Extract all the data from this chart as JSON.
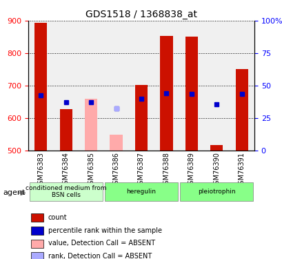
{
  "title": "GDS1518 / 1368838_at",
  "samples": [
    "GSM76383",
    "GSM76384",
    "GSM76385",
    "GSM76386",
    "GSM76387",
    "GSM76388",
    "GSM76389",
    "GSM76390",
    "GSM76391"
  ],
  "bar_values": [
    893,
    627,
    null,
    null,
    701,
    854,
    851,
    516,
    750
  ],
  "bar_absent_values": [
    null,
    null,
    660,
    547,
    null,
    null,
    null,
    null,
    null
  ],
  "blue_dots": [
    670,
    648,
    648,
    630,
    660,
    677,
    673,
    641,
    673
  ],
  "blue_absent_dots": [
    null,
    null,
    null,
    630,
    null,
    null,
    null,
    null,
    null
  ],
  "ylim_left": [
    500,
    900
  ],
  "ylim_right": [
    0,
    100
  ],
  "yticks_left": [
    500,
    600,
    700,
    800,
    900
  ],
  "yticks_right": [
    0,
    25,
    50,
    75,
    100
  ],
  "bar_color": "#cc1100",
  "bar_absent_color": "#ffaaaa",
  "dot_color": "#0000cc",
  "dot_absent_color": "#aaaaff",
  "agent_groups": [
    {
      "label": "conditioned medium from\nBSN cells",
      "start": 0,
      "end": 2,
      "color": "#ccffcc"
    },
    {
      "label": "heregulin",
      "start": 3,
      "end": 5,
      "color": "#88ff88"
    },
    {
      "label": "pleiotrophin",
      "start": 6,
      "end": 8,
      "color": "#88ff88"
    }
  ],
  "legend": [
    {
      "label": "count",
      "color": "#cc1100"
    },
    {
      "label": "percentile rank within the sample",
      "color": "#0000cc"
    },
    {
      "label": "value, Detection Call = ABSENT",
      "color": "#ffaaaa"
    },
    {
      "label": "rank, Detection Call = ABSENT",
      "color": "#aaaaff"
    }
  ],
  "background_color": "#ffffff",
  "plot_bg_color": "#f0f0f0",
  "bar_width": 0.5
}
